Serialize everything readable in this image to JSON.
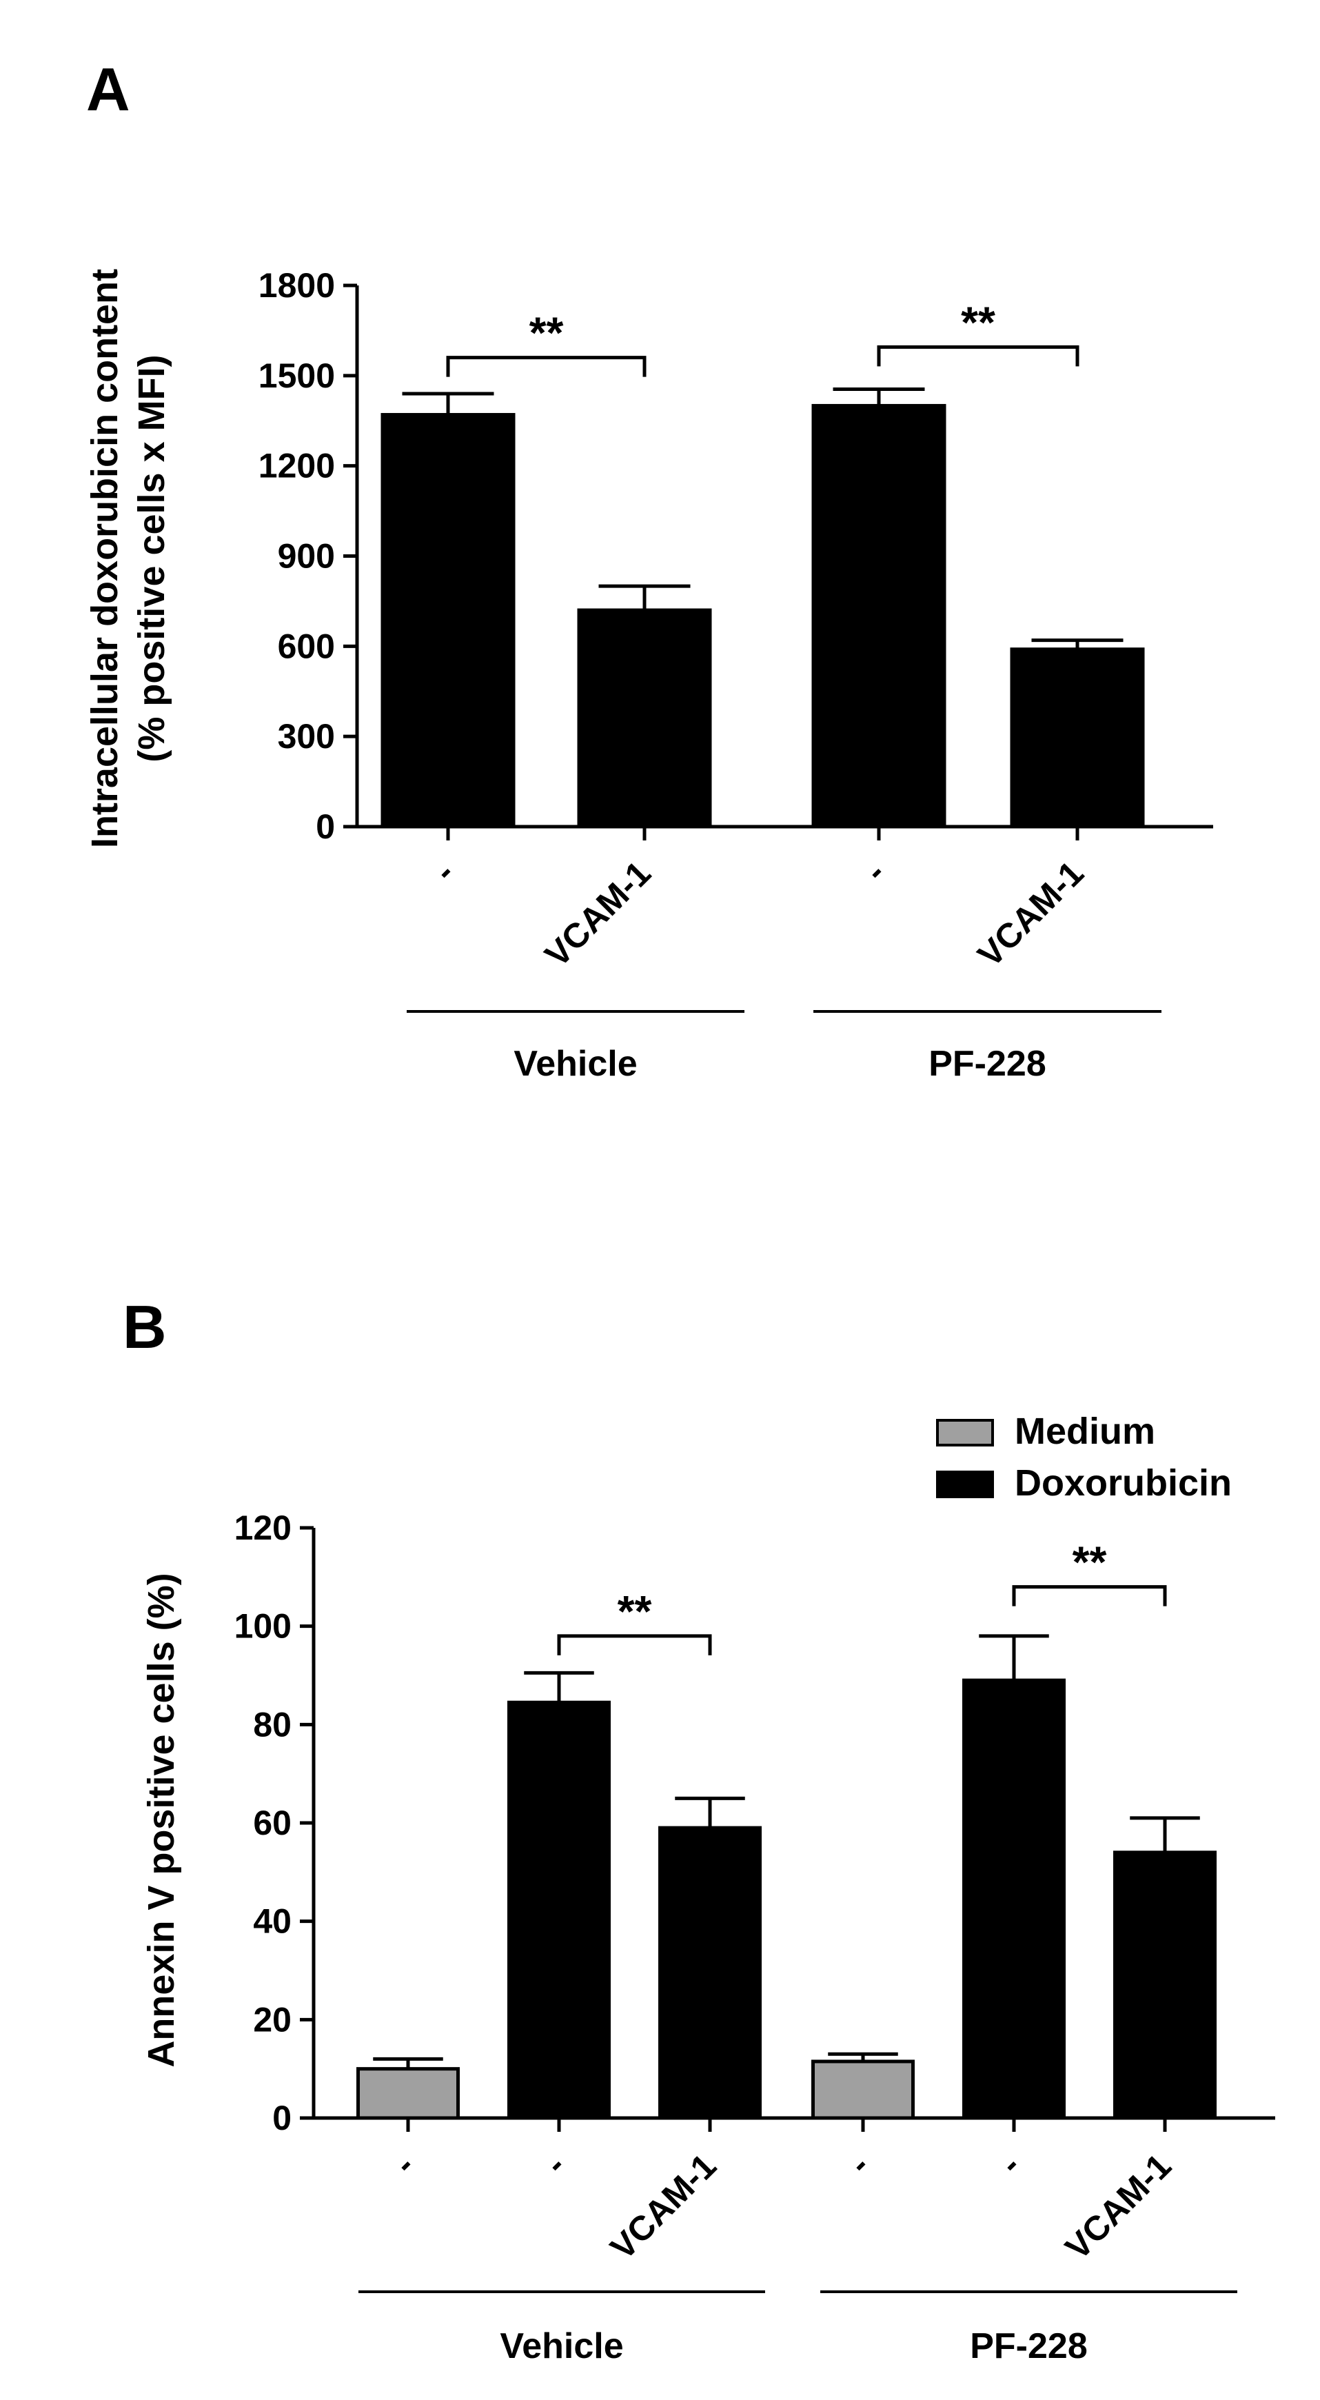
{
  "chart_data": [
    {
      "panel": "A",
      "type": "bar",
      "ylabel": [
        "Intracellular doxorubicin content",
        "(% positive cells x MFI)"
      ],
      "ylim": [
        0,
        1800
      ],
      "yticks": [
        0,
        300,
        600,
        900,
        1200,
        1500,
        1800
      ],
      "categories": [
        "-",
        "VCAM-1",
        "-",
        "VCAM-1"
      ],
      "values": [
        1370,
        720,
        1400,
        590
      ],
      "errors": [
        70,
        80,
        55,
        30
      ],
      "colors": [
        "#000000",
        "#000000",
        "#000000",
        "#000000"
      ],
      "groups": [
        {
          "label": "Vehicle",
          "from": 0,
          "to": 1
        },
        {
          "label": "PF-228",
          "from": 2,
          "to": 3
        }
      ],
      "significance": [
        {
          "from": 0,
          "to": 1,
          "label": "**",
          "y": 1560
        },
        {
          "from": 2,
          "to": 3,
          "label": "**",
          "y": 1595
        }
      ]
    },
    {
      "panel": "B",
      "type": "bar",
      "ylabel": [
        "Annexin V positive cells (%)"
      ],
      "ylim": [
        0,
        120
      ],
      "yticks": [
        0,
        20,
        40,
        60,
        80,
        100,
        120
      ],
      "categories": [
        "-",
        "-",
        "VCAM-1",
        "-",
        "-",
        "VCAM-1"
      ],
      "values": [
        10,
        84.5,
        59,
        11.5,
        89,
        54
      ],
      "errors": [
        2,
        6,
        6,
        1.5,
        9,
        7
      ],
      "colors": [
        "#a0a0a0",
        "#000000",
        "#000000",
        "#a0a0a0",
        "#000000",
        "#000000"
      ],
      "series": [
        {
          "name": "Medium",
          "color": "#a0a0a0"
        },
        {
          "name": "Doxorubicin",
          "color": "#000000"
        }
      ],
      "legend_position": "top-right",
      "groups": [
        {
          "label": "Vehicle",
          "from": 0,
          "to": 2
        },
        {
          "label": "PF-228",
          "from": 3,
          "to": 5
        }
      ],
      "significance": [
        {
          "from": 1,
          "to": 2,
          "label": "**",
          "y": 98
        },
        {
          "from": 4,
          "to": 5,
          "label": "**",
          "y": 108
        }
      ]
    }
  ]
}
